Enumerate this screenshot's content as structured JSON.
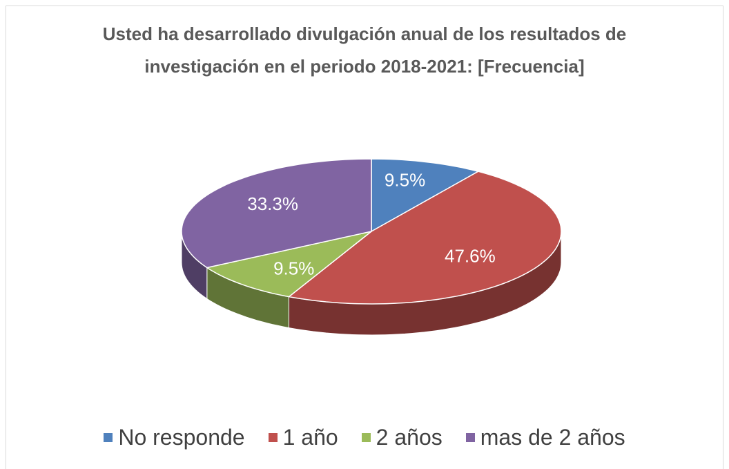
{
  "chart_data": {
    "type": "pie3d",
    "title": "Usted ha desarrollado divulgación anual de los resultados de investigación en el periodo 2018-2021: [Frecuencia]",
    "categories": [
      "No responde",
      "1 año",
      "2 años",
      "mas de 2 años"
    ],
    "values": [
      9.5,
      47.6,
      9.5,
      33.3
    ],
    "value_labels": [
      "9.5%",
      "47.6%",
      "9.5%",
      "33.3%"
    ],
    "colors": [
      "#4f81bd",
      "#c0504d",
      "#9bbb59",
      "#8064a2"
    ],
    "legend": "bottom"
  }
}
